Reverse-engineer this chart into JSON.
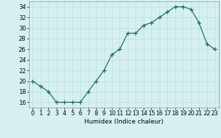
{
  "x": [
    0,
    1,
    2,
    3,
    4,
    5,
    6,
    7,
    8,
    9,
    10,
    11,
    12,
    13,
    14,
    15,
    16,
    17,
    18,
    19,
    20,
    21,
    22,
    23
  ],
  "y": [
    20,
    19,
    18,
    16,
    16,
    16,
    16,
    18,
    20,
    22,
    25,
    26,
    29,
    29,
    30.5,
    31,
    32,
    33,
    34,
    34,
    33.5,
    31,
    27,
    26
  ],
  "line_color": "#1a6b5a",
  "marker": "+",
  "bg_color": "#d6f0f0",
  "grid_color": "#b8dede",
  "xlabel": "Humidex (Indice chaleur)",
  "xlim": [
    -0.5,
    23.5
  ],
  "ylim": [
    15,
    35
  ],
  "yticks": [
    16,
    18,
    20,
    22,
    24,
    26,
    28,
    30,
    32,
    34
  ],
  "xticks": [
    0,
    1,
    2,
    3,
    4,
    5,
    6,
    7,
    8,
    9,
    10,
    11,
    12,
    13,
    14,
    15,
    16,
    17,
    18,
    19,
    20,
    21,
    22,
    23
  ],
  "label_fontsize": 6.5,
  "tick_fontsize": 6
}
